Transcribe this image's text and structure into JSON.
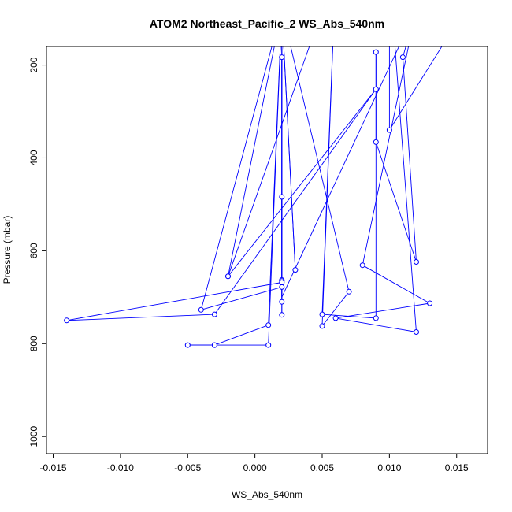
{
  "chart_data": {
    "type": "line",
    "title": "ATOM2 Northeast_Pacific_2 WS_Abs_540nm",
    "xlabel": "WS_Abs_540nm",
    "ylabel": "Pressure (mbar)",
    "xlim": [
      -0.0155,
      0.0173
    ],
    "ylim": [
      1037,
      160
    ],
    "y_inverted": true,
    "xticks": [
      -0.015,
      -0.01,
      -0.005,
      0.0,
      0.005,
      0.01,
      0.015
    ],
    "xtick_labels": [
      "-0.015",
      "-0.010",
      "-0.005",
      "0.000",
      "0.005",
      "0.010",
      "0.015"
    ],
    "yticks": [
      200,
      400,
      600,
      800,
      1000
    ],
    "ytick_labels": [
      "200",
      "400",
      "600",
      "800",
      "1000"
    ],
    "grid": false,
    "legend": "none",
    "series_color": "#0000ff",
    "series": [
      {
        "points": [
          {
            "x": 0.006,
            "y": 0.0,
            "marker": false
          },
          {
            "x": 0.005,
            "y": 762,
            "marker": true
          },
          {
            "x": 0.007,
            "y": 688,
            "marker": true
          },
          {
            "x": 0.002,
            "y": 80,
            "marker": false
          },
          {
            "x": 0.002,
            "y": 678,
            "marker": true
          },
          {
            "x": -0.004,
            "y": 727,
            "marker": true
          },
          {
            "x": 0.002,
            "y": 80,
            "marker": false
          },
          {
            "x": 0.002,
            "y": 738,
            "marker": true
          },
          {
            "x": 0.002,
            "y": 183,
            "marker": true
          },
          {
            "x": 0.002,
            "y": 710,
            "marker": true
          },
          {
            "x": 0.002,
            "y": 663,
            "marker": true
          },
          {
            "x": 0.002,
            "y": 665,
            "marker": true
          },
          {
            "x": 0.002,
            "y": 484,
            "marker": true
          },
          {
            "x": 0.002,
            "y": 668,
            "marker": true
          },
          {
            "x": -0.014,
            "y": 750,
            "marker": true
          },
          {
            "x": -0.003,
            "y": 737,
            "marker": true
          },
          {
            "x": 0.009,
            "y": 252,
            "marker": true
          },
          {
            "x": -0.002,
            "y": 655,
            "marker": true
          },
          {
            "x": 0.002,
            "y": 80,
            "marker": false
          },
          {
            "x": 0.003,
            "y": 641,
            "marker": true
          },
          {
            "x": 0.002,
            "y": 80,
            "marker": false
          },
          {
            "x": 0.001,
            "y": 760,
            "marker": true
          },
          {
            "x": -0.003,
            "y": 803,
            "marker": true
          },
          {
            "x": -0.005,
            "y": 803,
            "marker": true
          },
          {
            "x": -0.003,
            "y": 803,
            "marker": true
          },
          {
            "x": 0.001,
            "y": 803,
            "marker": true
          },
          {
            "x": 0.002,
            "y": 80,
            "marker": false
          },
          {
            "x": 0.002,
            "y": 700,
            "marker": false
          },
          {
            "x": 0.012,
            "y": 80,
            "marker": false
          },
          {
            "x": 0.011,
            "y": 183,
            "marker": true
          },
          {
            "x": 0.012,
            "y": 624,
            "marker": true
          },
          {
            "x": 0.009,
            "y": 366,
            "marker": true
          },
          {
            "x": 0.009,
            "y": 172,
            "marker": true
          },
          {
            "x": 0.009,
            "y": 745,
            "marker": true
          },
          {
            "x": 0.005,
            "y": 737,
            "marker": true
          },
          {
            "x": 0.006,
            "y": 0.0,
            "marker": false
          },
          {
            "x": 0.012,
            "y": 80,
            "marker": false
          },
          {
            "x": 0.008,
            "y": 631,
            "marker": true
          },
          {
            "x": 0.013,
            "y": 713,
            "marker": true
          },
          {
            "x": 0.006,
            "y": 745,
            "marker": true
          },
          {
            "x": 0.012,
            "y": 775,
            "marker": true
          },
          {
            "x": 0.01,
            "y": 0.0,
            "marker": false
          },
          {
            "x": 0.01,
            "y": 340,
            "marker": true
          },
          {
            "x": 0.014,
            "y": 155,
            "marker": false
          },
          {
            "x": 0.006,
            "y": 0.0,
            "marker": false
          },
          {
            "x": -0.002,
            "y": 655,
            "marker": true
          },
          {
            "x": -0.002,
            "y": 650,
            "marker": false
          }
        ]
      }
    ]
  }
}
